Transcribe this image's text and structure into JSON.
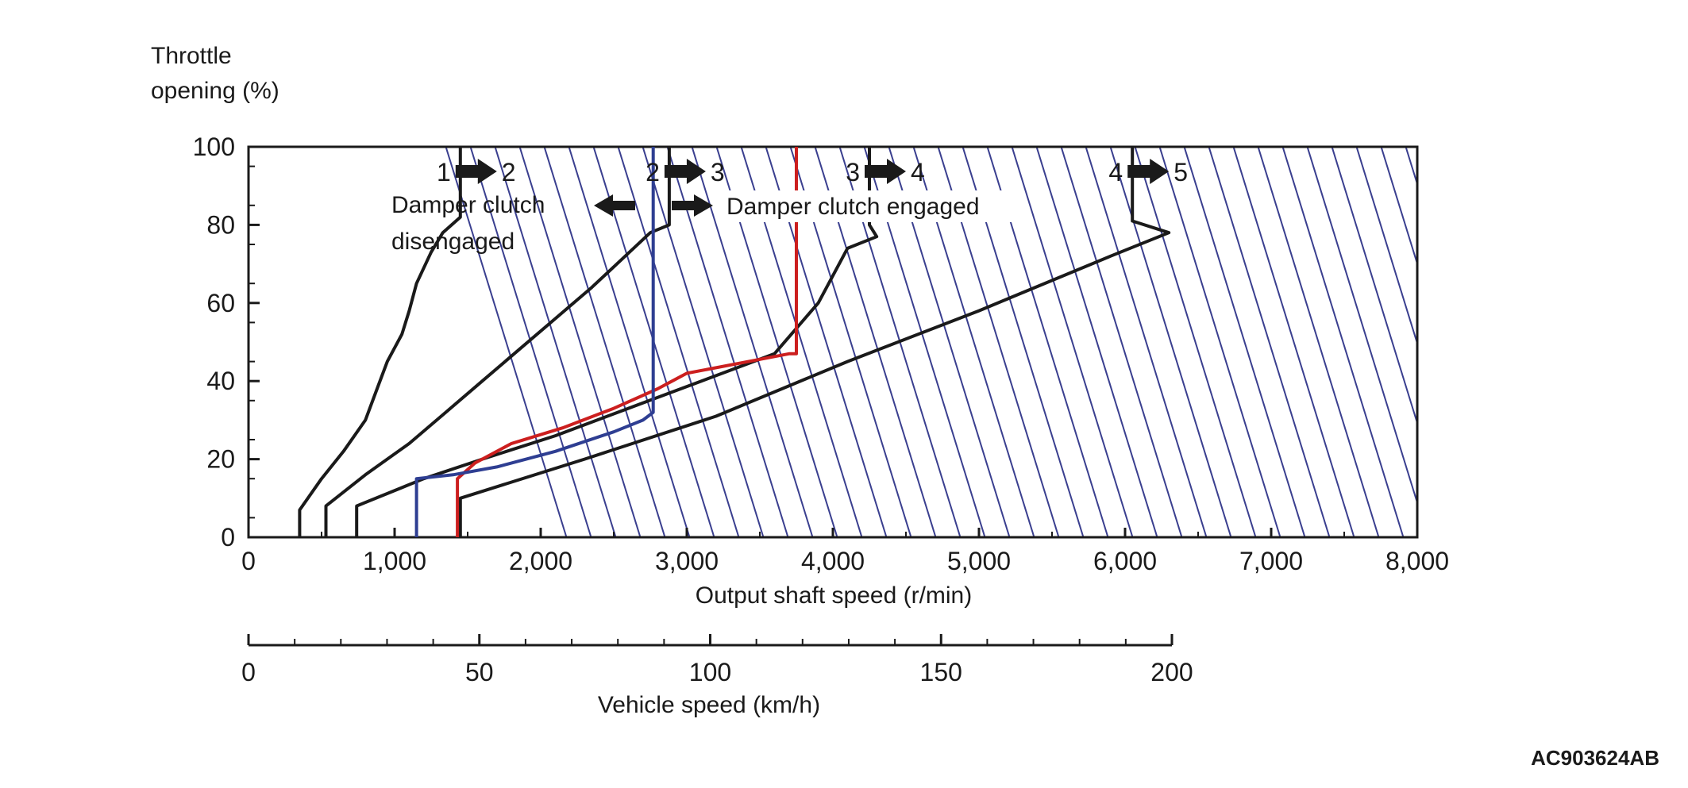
{
  "chart_data": {
    "type": "line",
    "y_axis": {
      "label": [
        "Throttle",
        "opening (%)"
      ],
      "range": [
        0,
        100
      ],
      "ticks": [
        0,
        20,
        40,
        60,
        80,
        100
      ],
      "tick_labels": [
        "0",
        "20",
        "40",
        "60",
        "80",
        "100"
      ]
    },
    "x_axis": {
      "label": "Output shaft speed (r/min)",
      "range": [
        0,
        8000
      ],
      "ticks": [
        0,
        1000,
        2000,
        3000,
        4000,
        5000,
        6000,
        7000,
        8000
      ],
      "tick_labels": [
        "0",
        "1,000",
        "2,000",
        "3,000",
        "4,000",
        "5,000",
        "6,000",
        "7,000",
        "8,000"
      ]
    },
    "x2_axis": {
      "label": "Vehicle speed (km/h)",
      "range": [
        0,
        200
      ],
      "ticks": [
        0,
        50,
        100,
        150,
        200
      ],
      "tick_labels": [
        "0",
        "50",
        "100",
        "150",
        "200"
      ]
    },
    "series": [
      {
        "name": "1→2",
        "color": "#1a1a1a",
        "points": [
          [
            350,
            0
          ],
          [
            350,
            7
          ],
          [
            500,
            15
          ],
          [
            650,
            22
          ],
          [
            800,
            30
          ],
          [
            880,
            38
          ],
          [
            950,
            45
          ],
          [
            1050,
            52
          ],
          [
            1100,
            58
          ],
          [
            1150,
            65
          ],
          [
            1250,
            73
          ],
          [
            1330,
            78
          ],
          [
            1450,
            82
          ],
          [
            1450,
            100
          ]
        ]
      },
      {
        "name": "2→3",
        "color": "#1a1a1a",
        "points": [
          [
            530,
            0
          ],
          [
            530,
            8
          ],
          [
            800,
            16
          ],
          [
            1100,
            24
          ],
          [
            1350,
            32
          ],
          [
            1600,
            40
          ],
          [
            1850,
            48
          ],
          [
            2100,
            56
          ],
          [
            2350,
            64
          ],
          [
            2550,
            71
          ],
          [
            2750,
            78
          ],
          [
            2880,
            80
          ],
          [
            2880,
            100
          ]
        ]
      },
      {
        "name": "3→4",
        "color": "#1a1a1a",
        "points": [
          [
            740,
            0
          ],
          [
            740,
            8
          ],
          [
            1200,
            15
          ],
          [
            1600,
            20
          ],
          [
            2100,
            26
          ],
          [
            2600,
            33
          ],
          [
            3100,
            40
          ],
          [
            3600,
            47
          ],
          [
            3900,
            60
          ],
          [
            4100,
            74
          ],
          [
            4300,
            77
          ],
          [
            4250,
            80
          ],
          [
            4250,
            100
          ]
        ]
      },
      {
        "name": "4→5",
        "color": "#1a1a1a",
        "points": [
          [
            1450,
            0
          ],
          [
            1450,
            10
          ],
          [
            2300,
            20
          ],
          [
            3200,
            31
          ],
          [
            4100,
            45
          ],
          [
            5000,
            58
          ],
          [
            5900,
            72
          ],
          [
            6300,
            78
          ],
          [
            6050,
            81
          ],
          [
            6050,
            100
          ]
        ]
      },
      {
        "name": "red boundary",
        "color": "#cc1f1f",
        "points": [
          [
            1430,
            0
          ],
          [
            1430,
            15
          ],
          [
            1550,
            19
          ],
          [
            1800,
            24
          ],
          [
            2150,
            28
          ],
          [
            2500,
            33
          ],
          [
            2800,
            38
          ],
          [
            2900,
            40
          ],
          [
            3000,
            42
          ],
          [
            3700,
            47
          ],
          [
            3750,
            47
          ],
          [
            3750,
            100
          ]
        ]
      },
      {
        "name": "blue boundary",
        "color": "#2e3e92",
        "points": [
          [
            1150,
            0
          ],
          [
            1150,
            15
          ],
          [
            1400,
            16
          ],
          [
            1700,
            18
          ],
          [
            2100,
            22
          ],
          [
            2500,
            27
          ],
          [
            2700,
            30
          ],
          [
            2770,
            32
          ],
          [
            2770,
            35
          ],
          [
            2770,
            100
          ]
        ]
      }
    ],
    "hatch_region": "engagement region",
    "shift_labels": [
      {
        "from": "1",
        "to": "2"
      },
      {
        "from": "2",
        "to": "3"
      },
      {
        "from": "3",
        "to": "4"
      },
      {
        "from": "4",
        "to": "5"
      }
    ],
    "annotations": {
      "disengaged": [
        "Damper clutch",
        "disengaged"
      ],
      "engaged": "Damper clutch engaged"
    },
    "grid": false,
    "legend": "none"
  },
  "figure_id": "AC903624AB"
}
